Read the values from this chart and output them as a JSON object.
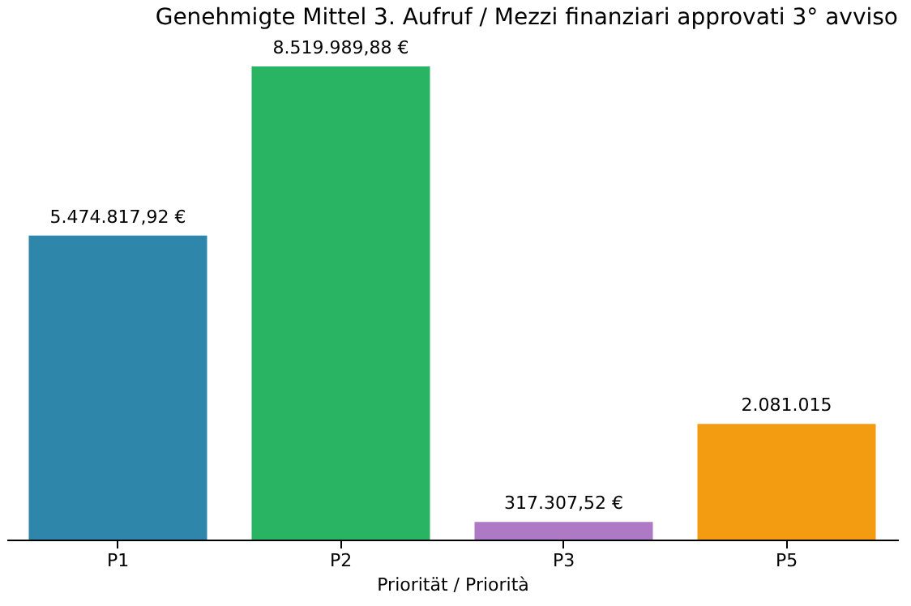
{
  "chart_data": {
    "type": "bar",
    "title": "Genehmigte Mittel 3. Aufruf / Mezzi finanziari approvati 3° avviso",
    "xlabel": "Priorität / Priorità",
    "categories": [
      "P1",
      "P2",
      "P3",
      "P5"
    ],
    "values": [
      5474817.92,
      8519989.88,
      317307.52,
      2081015
    ],
    "colors": [
      "#2e86ab",
      "#28b463",
      "#af7ac5",
      "#f39c12"
    ],
    "value_labels": [
      "5.474.817,92 €",
      "8.519.989,88 €",
      "317.307,52 €",
      "2.081.015"
    ]
  }
}
